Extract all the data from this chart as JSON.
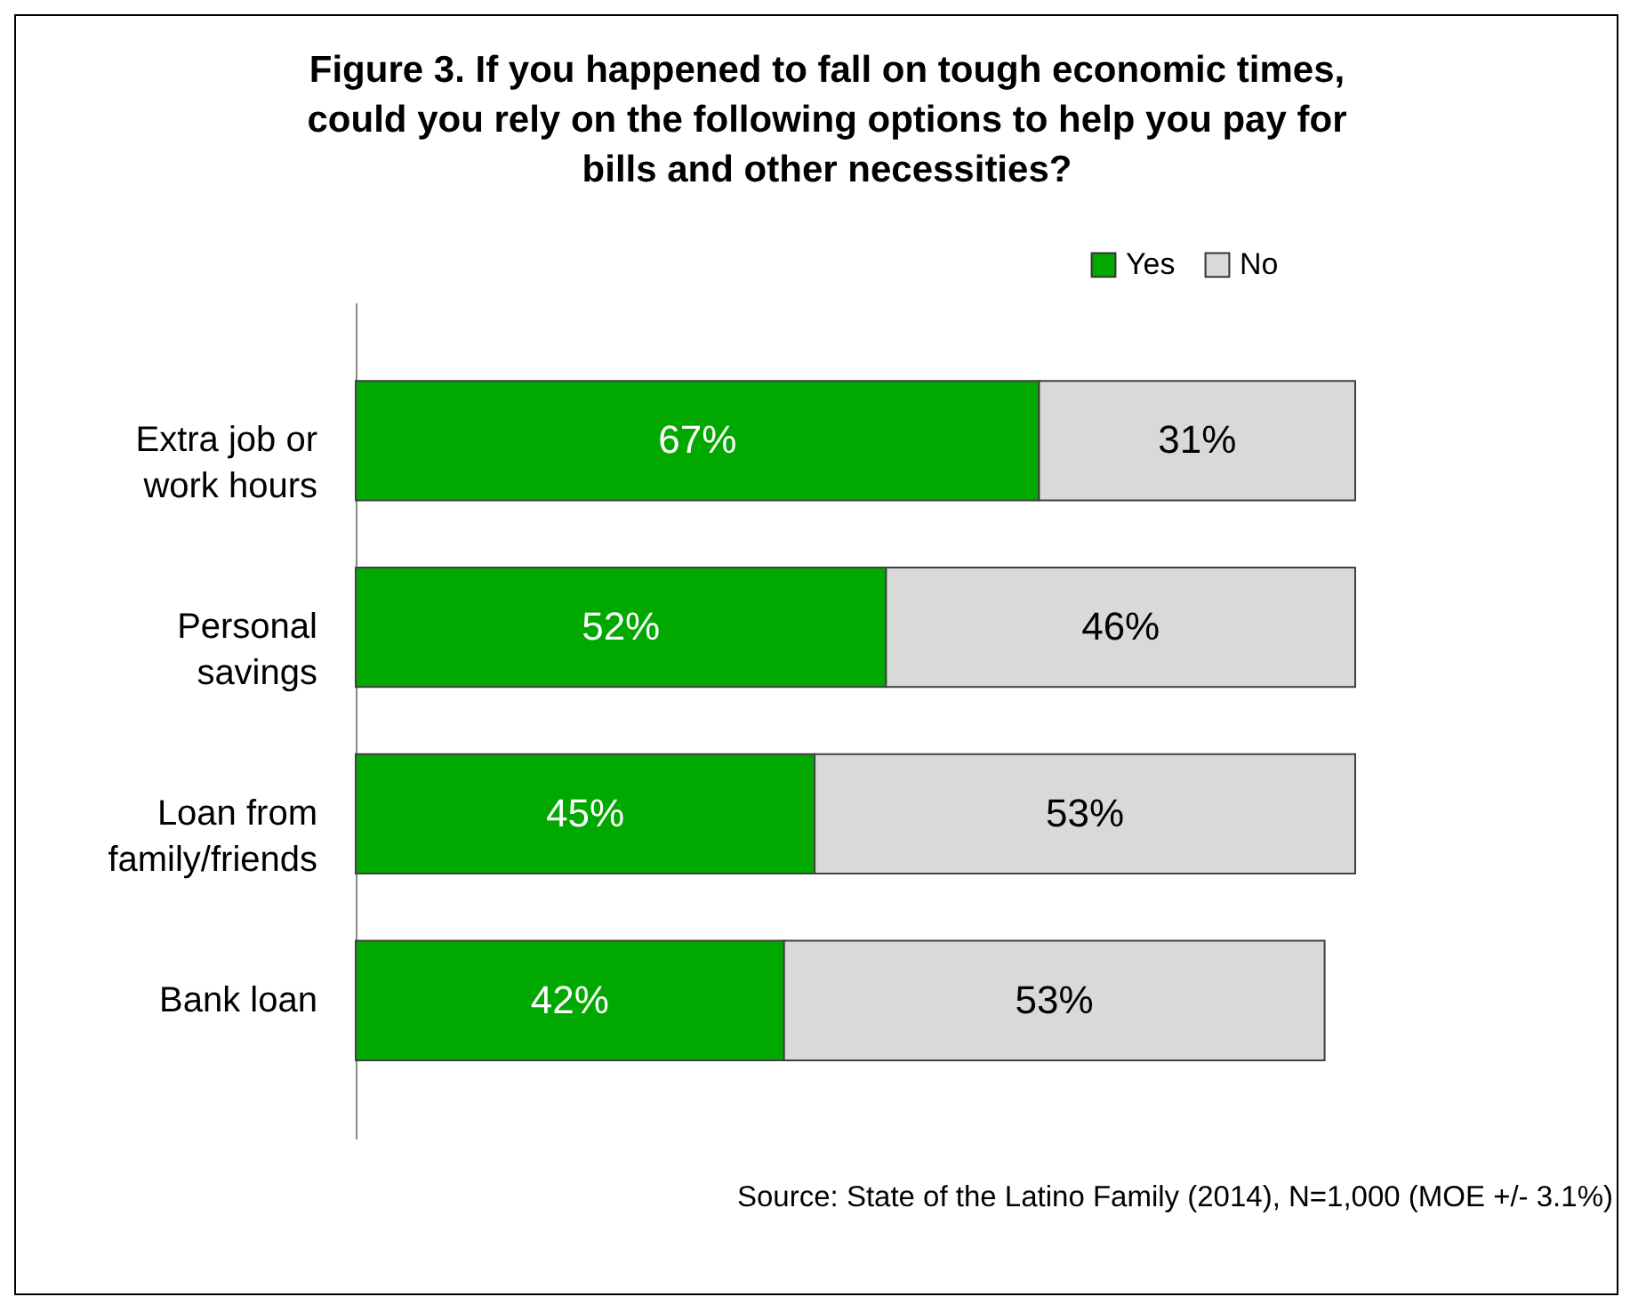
{
  "chart_data": {
    "type": "bar",
    "orientation": "horizontal",
    "stacked": true,
    "title": "Figure 3. If you happened to fall on tough economic times, could you rely on the following options to help you pay for bills and other necessities?",
    "categories": [
      "Extra job or work hours",
      "Personal savings",
      "Loan from family/friends",
      "Bank loan"
    ],
    "series": [
      {
        "name": "Yes",
        "color": "#00a800",
        "values": [
          67,
          52,
          45,
          42
        ],
        "value_labels": [
          "67%",
          "52%",
          "45%",
          "42%"
        ]
      },
      {
        "name": "No",
        "color": "#d9d9d9",
        "values": [
          31,
          46,
          53,
          53
        ],
        "value_labels": [
          "31%",
          "46%",
          "53%",
          "53%"
        ]
      }
    ],
    "legend": "top right",
    "grid": false,
    "annotations": [
      "Source: State of the Latino Family (2014),  N=1,000 (MOE +/- 3.1%)"
    ]
  }
}
